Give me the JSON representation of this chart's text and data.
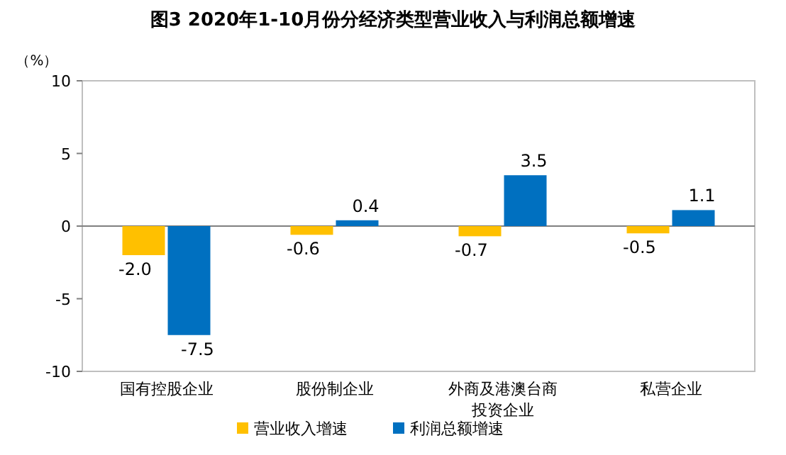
{
  "chart_data": {
    "type": "bar",
    "title": "图3 2020年1-10月份分经济类型营业收入与利润总额增速",
    "ylabel": "（%）",
    "categories": [
      "国有控股企业",
      "股份制企业",
      "外商及港澳台商投资企业",
      "私营企业"
    ],
    "series": [
      {
        "name": "营业收入增速",
        "color": "#ffc000",
        "values": [
          -2.0,
          -0.6,
          -0.7,
          -0.5
        ],
        "value_labels": [
          "-2.0",
          "-0.6",
          "-0.7",
          "-0.5"
        ]
      },
      {
        "name": "利润总额增速",
        "color": "#0070c0",
        "values": [
          -7.5,
          0.4,
          3.5,
          1.1
        ],
        "value_labels": [
          "-7.5",
          "0.4",
          "3.5",
          "1.1"
        ]
      }
    ],
    "ylim": [
      -10,
      10
    ],
    "yticks": [
      -10,
      -5,
      0,
      5,
      10
    ],
    "legend": "bottom"
  }
}
